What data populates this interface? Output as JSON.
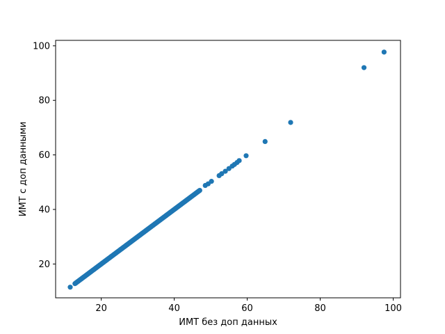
{
  "chart_data": {
    "type": "scatter",
    "title": "",
    "xlabel": "ИМТ без доп данных",
    "ylabel": "ИМТ с доп данными",
    "xlim": [
      7.5,
      102
    ],
    "ylim": [
      7.6,
      102
    ],
    "xticks": [
      20,
      40,
      60,
      80,
      100
    ],
    "yticks": [
      20,
      40,
      60,
      80,
      100
    ],
    "grid": false,
    "marker_color": "#1f77b4",
    "series": [
      {
        "dense_range": [
          12.8,
          47.0
        ],
        "points": [
          {
            "x": 11.5,
            "y": 11.5
          },
          {
            "x": 48.5,
            "y": 48.8
          },
          {
            "x": 49.3,
            "y": 49.4
          },
          {
            "x": 50.2,
            "y": 50.3
          },
          {
            "x": 52.3,
            "y": 52.4
          },
          {
            "x": 53.0,
            "y": 53.1
          },
          {
            "x": 54.0,
            "y": 54.0
          },
          {
            "x": 55.0,
            "y": 55.0
          },
          {
            "x": 55.9,
            "y": 55.9
          },
          {
            "x": 56.5,
            "y": 56.5
          },
          {
            "x": 57.2,
            "y": 57.2
          },
          {
            "x": 57.8,
            "y": 57.9
          },
          {
            "x": 59.7,
            "y": 59.7
          },
          {
            "x": 64.9,
            "y": 64.9
          },
          {
            "x": 71.9,
            "y": 71.9
          },
          {
            "x": 92.0,
            "y": 92.0
          },
          {
            "x": 97.5,
            "y": 97.7
          }
        ]
      }
    ]
  }
}
